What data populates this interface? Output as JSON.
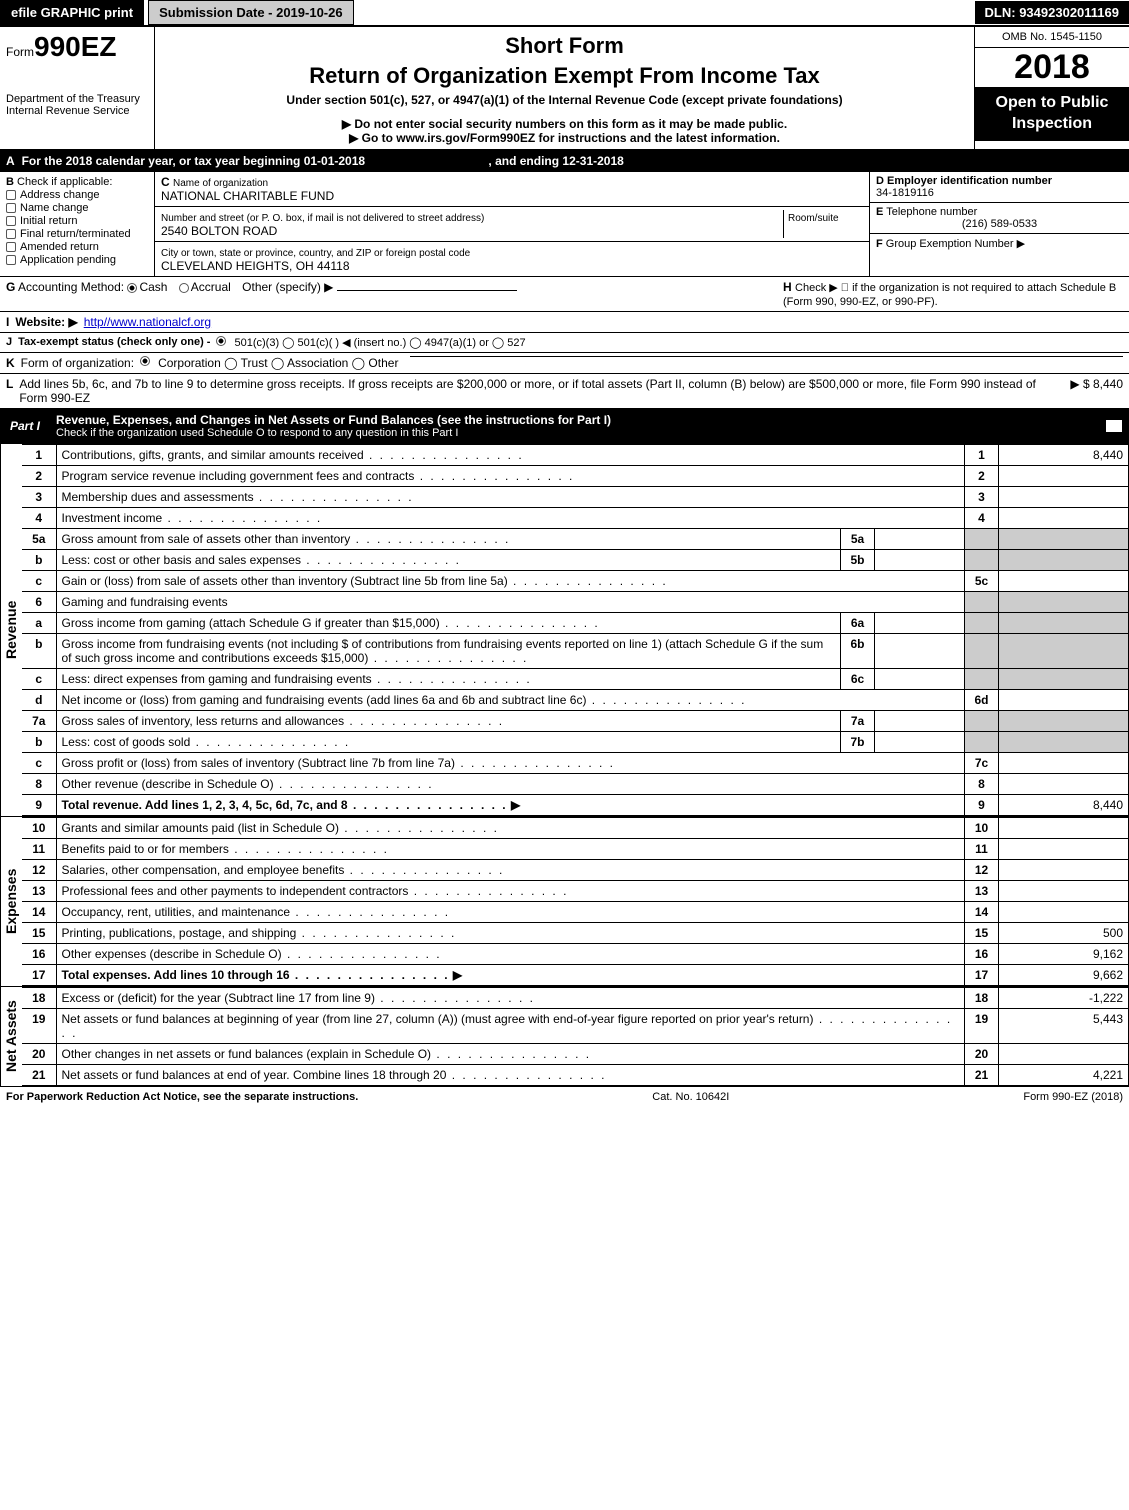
{
  "topbar": {
    "efile": "efile GRAPHIC print",
    "submission": "Submission Date - 2019-10-26",
    "dln": "DLN: 93492302011169"
  },
  "header": {
    "form_prefix": "Form",
    "form_no": "990EZ",
    "short_form": "Short Form",
    "title": "Return of Organization Exempt From Income Tax",
    "subtitle": "Under section 501(c), 527, or 4947(a)(1) of the Internal Revenue Code (except private foundations)",
    "dept1": "Department of the Treasury",
    "dept2": "Internal Revenue Service",
    "note1": "▶ Do not enter social security numbers on this form as it may be made public.",
    "note2": "▶ Go to www.irs.gov/Form990EZ for instructions and the latest information.",
    "omb": "OMB No. 1545-1150",
    "year": "2018",
    "open": "Open to Public Inspection"
  },
  "rowA": {
    "label": "A",
    "text": "For the 2018 calendar year, or tax year beginning 01-01-2018",
    "ending": ", and ending 12-31-2018"
  },
  "B": {
    "label": "B",
    "check_if": "Check if applicable:",
    "items": [
      "Address change",
      "Name change",
      "Initial return",
      "Final return/terminated",
      "Amended return",
      "Application pending"
    ]
  },
  "C": {
    "label": "C",
    "name_lbl": "Name of organization",
    "name": "NATIONAL CHARITABLE FUND",
    "street_lbl": "Number and street (or P. O. box, if mail is not delivered to street address)",
    "room_lbl": "Room/suite",
    "street": "2540 BOLTON ROAD",
    "city_lbl": "City or town, state or province, country, and ZIP or foreign postal code",
    "city": "CLEVELAND HEIGHTS, OH  44118"
  },
  "D": {
    "label": "D",
    "text": "Employer identification number",
    "value": "34-1819116"
  },
  "E": {
    "label": "E",
    "text": "Telephone number",
    "value": "(216) 589-0533"
  },
  "F": {
    "label": "F",
    "text": "Group Exemption Number  ▶"
  },
  "G": {
    "label": "G",
    "text": "Accounting Method:",
    "cash": "Cash",
    "accrual": "Accrual",
    "other": "Other (specify) ▶"
  },
  "H": {
    "label": "H",
    "text": "Check ▶   ⃞  if the organization is not required to attach Schedule B (Form 990, 990-EZ, or 990-PF)."
  },
  "I": {
    "label": "I",
    "text": "Website: ▶",
    "value": "http//www.nationalcf.org"
  },
  "J": {
    "label": "J",
    "text": "Tax-exempt status (check only one) -",
    "opts": "501(c)(3)   ◯ 501(c)(  ) ◀ (insert no.)  ◯ 4947(a)(1) or  ◯ 527"
  },
  "K": {
    "label": "K",
    "text": "Form of organization:",
    "opts": "Corporation   ◯ Trust   ◯ Association   ◯ Other"
  },
  "L": {
    "label": "L",
    "text": "Add lines 5b, 6c, and 7b to line 9 to determine gross receipts. If gross receipts are $200,000 or more, or if total assets (Part II, column (B) below) are $500,000 or more, file Form 990 instead of Form 990-EZ",
    "amount": "▶ $ 8,440"
  },
  "part1": {
    "label": "Part I",
    "title": "Revenue, Expenses, and Changes in Net Assets or Fund Balances (see the instructions for Part I)",
    "check": "Check if the organization used Schedule O to respond to any question in this Part I"
  },
  "sides": {
    "revenue": "Revenue",
    "expenses": "Expenses",
    "net": "Net Assets"
  },
  "lines": {
    "l1": {
      "no": "1",
      "desc": "Contributions, gifts, grants, and similar amounts received",
      "rt": "1",
      "val": "8,440"
    },
    "l2": {
      "no": "2",
      "desc": "Program service revenue including government fees and contracts",
      "rt": "2",
      "val": ""
    },
    "l3": {
      "no": "3",
      "desc": "Membership dues and assessments",
      "rt": "3",
      "val": ""
    },
    "l4": {
      "no": "4",
      "desc": "Investment income",
      "rt": "4",
      "val": ""
    },
    "l5a": {
      "no": "5a",
      "desc": "Gross amount from sale of assets other than inventory",
      "mini": "5a"
    },
    "l5b": {
      "no": "b",
      "desc": "Less: cost or other basis and sales expenses",
      "mini": "5b"
    },
    "l5c": {
      "no": "c",
      "desc": "Gain or (loss) from sale of assets other than inventory (Subtract line 5b from line 5a)",
      "rt": "5c",
      "val": ""
    },
    "l6": {
      "no": "6",
      "desc": "Gaming and fundraising events"
    },
    "l6a": {
      "no": "a",
      "desc": "Gross income from gaming (attach Schedule G if greater than $15,000)",
      "mini": "6a"
    },
    "l6b": {
      "no": "b",
      "desc": "Gross income from fundraising events (not including $                  of contributions from fundraising events reported on line 1) (attach Schedule G if the sum of such gross income and contributions exceeds $15,000)",
      "mini": "6b"
    },
    "l6c": {
      "no": "c",
      "desc": "Less: direct expenses from gaming and fundraising events",
      "mini": "6c"
    },
    "l6d": {
      "no": "d",
      "desc": "Net income or (loss) from gaming and fundraising events (add lines 6a and 6b and subtract line 6c)",
      "rt": "6d",
      "val": ""
    },
    "l7a": {
      "no": "7a",
      "desc": "Gross sales of inventory, less returns and allowances",
      "mini": "7a"
    },
    "l7b": {
      "no": "b",
      "desc": "Less: cost of goods sold",
      "mini": "7b"
    },
    "l7c": {
      "no": "c",
      "desc": "Gross profit or (loss) from sales of inventory (Subtract line 7b from line 7a)",
      "rt": "7c",
      "val": ""
    },
    "l8": {
      "no": "8",
      "desc": "Other revenue (describe in Schedule O)",
      "rt": "8",
      "val": ""
    },
    "l9": {
      "no": "9",
      "desc": "Total revenue. Add lines 1, 2, 3, 4, 5c, 6d, 7c, and 8",
      "rt": "9",
      "val": "8,440",
      "bold": true
    },
    "l10": {
      "no": "10",
      "desc": "Grants and similar amounts paid (list in Schedule O)",
      "rt": "10",
      "val": ""
    },
    "l11": {
      "no": "11",
      "desc": "Benefits paid to or for members",
      "rt": "11",
      "val": ""
    },
    "l12": {
      "no": "12",
      "desc": "Salaries, other compensation, and employee benefits",
      "rt": "12",
      "val": ""
    },
    "l13": {
      "no": "13",
      "desc": "Professional fees and other payments to independent contractors",
      "rt": "13",
      "val": ""
    },
    "l14": {
      "no": "14",
      "desc": "Occupancy, rent, utilities, and maintenance",
      "rt": "14",
      "val": ""
    },
    "l15": {
      "no": "15",
      "desc": "Printing, publications, postage, and shipping",
      "rt": "15",
      "val": "500"
    },
    "l16": {
      "no": "16",
      "desc": "Other expenses (describe in Schedule O)",
      "rt": "16",
      "val": "9,162"
    },
    "l17": {
      "no": "17",
      "desc": "Total expenses. Add lines 10 through 16",
      "rt": "17",
      "val": "9,662",
      "bold": true
    },
    "l18": {
      "no": "18",
      "desc": "Excess or (deficit) for the year (Subtract line 17 from line 9)",
      "rt": "18",
      "val": "-1,222"
    },
    "l19": {
      "no": "19",
      "desc": "Net assets or fund balances at beginning of year (from line 27, column (A)) (must agree with end-of-year figure reported on prior year's return)",
      "rt": "19",
      "val": "5,443"
    },
    "l20": {
      "no": "20",
      "desc": "Other changes in net assets or fund balances (explain in Schedule O)",
      "rt": "20",
      "val": ""
    },
    "l21": {
      "no": "21",
      "desc": "Net assets or fund balances at end of year. Combine lines 18 through 20",
      "rt": "21",
      "val": "4,221"
    }
  },
  "footer": {
    "left": "For Paperwork Reduction Act Notice, see the separate instructions.",
    "mid": "Cat. No. 10642I",
    "right": "Form 990-EZ (2018)"
  },
  "colors": {
    "black": "#000000",
    "white": "#ffffff",
    "gray": "#cccccc",
    "link": "#0000cc"
  }
}
